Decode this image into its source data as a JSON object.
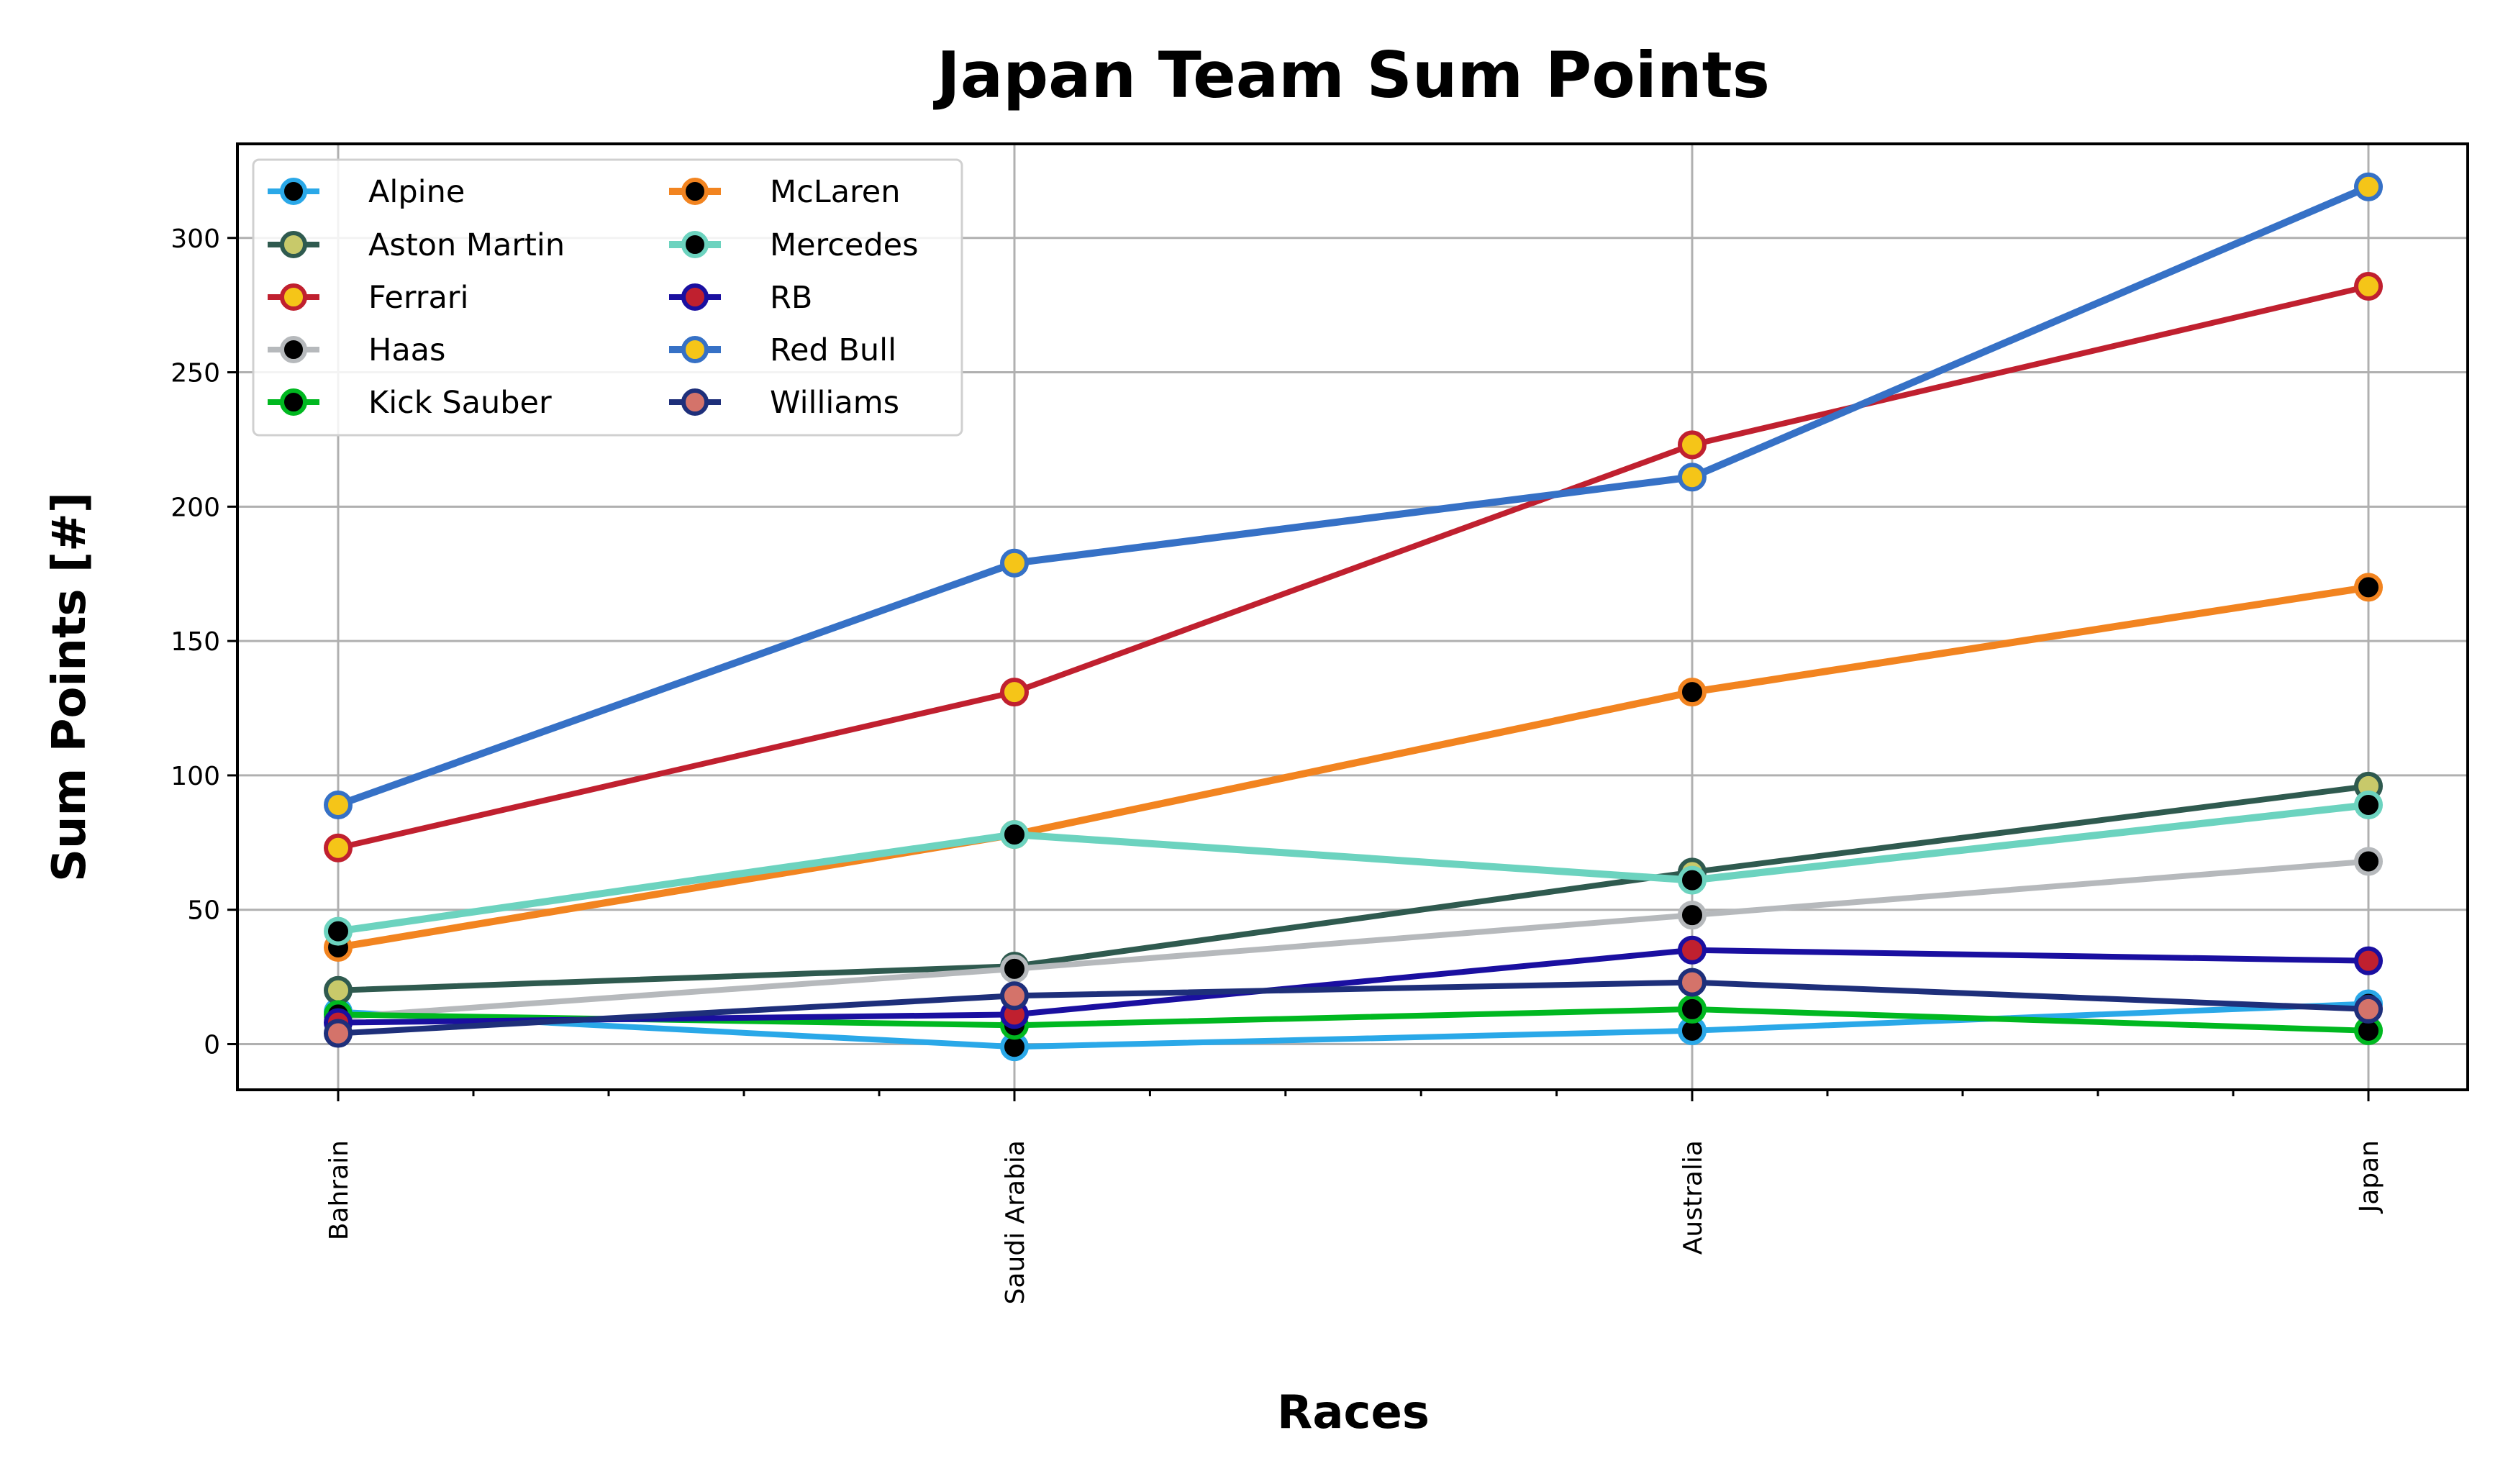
{
  "chart_data": {
    "type": "line",
    "title": "Japan Team Sum Points",
    "xlabel": "Races",
    "ylabel": "Sum Points [#]",
    "categories": [
      "Bahrain",
      "Saudi Arabia",
      "Australia",
      "Japan"
    ],
    "y_ticks": [
      0,
      50,
      100,
      150,
      200,
      250,
      300
    ],
    "ylim": [
      -17,
      335
    ],
    "grid": true,
    "legend": {
      "position": "top-left",
      "columns": 2
    },
    "series": [
      {
        "name": "Alpine",
        "values": [
          12,
          -1,
          5,
          15
        ],
        "line_color": "#2aa8e8",
        "marker_edge": "#2aa8e8",
        "marker_face": "#000000",
        "width": 8
      },
      {
        "name": "Aston Martin",
        "values": [
          20,
          29,
          64,
          96
        ],
        "line_color": "#2f5a4f",
        "marker_edge": "#2f5a4f",
        "marker_face": "#c8c96a",
        "width": 8
      },
      {
        "name": "Ferrari",
        "values": [
          73,
          131,
          223,
          282
        ],
        "line_color": "#c0202f",
        "marker_edge": "#c0202f",
        "marker_face": "#f5c518",
        "width": 8
      },
      {
        "name": "Haas",
        "values": [
          10,
          28,
          48,
          68
        ],
        "line_color": "#b6b9bc",
        "marker_edge": "#b6b9bc",
        "marker_face": "#000000",
        "width": 8
      },
      {
        "name": "Kick Sauber",
        "values": [
          11,
          7,
          13,
          5
        ],
        "line_color": "#00b820",
        "marker_edge": "#00b820",
        "marker_face": "#000000",
        "width": 8
      },
      {
        "name": "McLaren",
        "values": [
          36,
          78,
          131,
          170
        ],
        "line_color": "#f28420",
        "marker_edge": "#f28420",
        "marker_face": "#000000",
        "width": 10
      },
      {
        "name": "Mercedes",
        "values": [
          42,
          78,
          61,
          89
        ],
        "line_color": "#6cd3bf",
        "marker_edge": "#6cd3bf",
        "marker_face": "#000000",
        "width": 10
      },
      {
        "name": "RB",
        "values": [
          8,
          11,
          35,
          31
        ],
        "line_color": "#1a0fa0",
        "marker_edge": "#1a0fa0",
        "marker_face": "#c0202f",
        "width": 8
      },
      {
        "name": "Red Bull",
        "values": [
          89,
          179,
          211,
          319
        ],
        "line_color": "#3671c6",
        "marker_edge": "#3671c6",
        "marker_face": "#f5c518",
        "width": 10
      },
      {
        "name": "Williams",
        "values": [
          4,
          18,
          23,
          13
        ],
        "line_color": "#1e2f7a",
        "marker_edge": "#1e2f7a",
        "marker_face": "#d4736a",
        "width": 8
      }
    ]
  }
}
